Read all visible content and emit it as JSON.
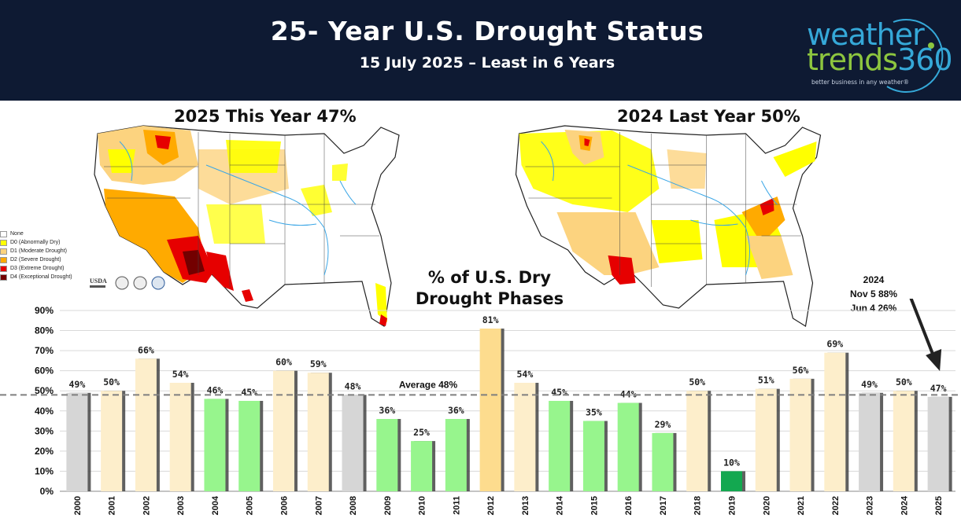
{
  "header": {
    "title": "25- Year U.S. Drought Status",
    "subtitle": "15 July 2025 – Least in 6 Years"
  },
  "logo": {
    "word1": "weather",
    "word2": "trends",
    "word3": "360",
    "tagline": "better business in any weather®",
    "icon": "weathertrends360-logo"
  },
  "maps": [
    {
      "title": "2025 This Year  47%",
      "icon": "us-drought-map-2025"
    },
    {
      "title": "2024 Last Year  50%",
      "icon": "us-drought-map-2024"
    }
  ],
  "legend": {
    "items": [
      {
        "label": "None",
        "color": "#ffffff"
      },
      {
        "label": "D0 (Abnormally Dry)",
        "color": "#ffff00"
      },
      {
        "label": "D1 (Moderate Drought)",
        "color": "#fcd37f"
      },
      {
        "label": "D2 (Severe Drought)",
        "color": "#ffaa00"
      },
      {
        "label": "D3 (Extreme Drought)",
        "color": "#e60000"
      },
      {
        "label": "D4 (Exceptional Drought)",
        "color": "#730000"
      }
    ],
    "agency_logo_text": "USDA"
  },
  "colors": {
    "header_bg": "#0e1a33",
    "gray": "#d6d6d6",
    "light_yellow": "#fdeecb",
    "orange_yellow": "#fddc8e",
    "light_green": "#97f58d",
    "dark_green": "#13a850",
    "average_line": "#7f7f7f",
    "grid": "#d9d9d9"
  },
  "chart_data": {
    "type": "bar",
    "title": "% of U.S. Dry Drought Phases",
    "title_lines": [
      "% of U.S. Dry",
      "Drought Phases"
    ],
    "xlabel": "",
    "ylabel": "",
    "ylim": [
      0,
      90
    ],
    "ytick_labels": [
      "0%",
      "10%",
      "20%",
      "30%",
      "40%",
      "50%",
      "60%",
      "70%",
      "80%",
      "90%"
    ],
    "grid": true,
    "categories": [
      "2000",
      "2001",
      "2002",
      "2003",
      "2004",
      "2005",
      "2006",
      "2007",
      "2008",
      "2009",
      "2010",
      "2011",
      "2012",
      "2013",
      "2014",
      "2015",
      "2016",
      "2017",
      "2018",
      "2019",
      "2020",
      "2021",
      "2022",
      "2023",
      "2024",
      "2025"
    ],
    "values": [
      49,
      50,
      66,
      54,
      46,
      45,
      60,
      59,
      48,
      36,
      25,
      36,
      81,
      54,
      45,
      35,
      44,
      29,
      50,
      10,
      51,
      56,
      69,
      49,
      50,
      47
    ],
    "value_labels": [
      "49%",
      "50%",
      "66%",
      "54%",
      "46%",
      "45%",
      "60%",
      "59%",
      "48%",
      "36%",
      "25%",
      "36%",
      "81%",
      "54%",
      "45%",
      "35%",
      "44%",
      "29%",
      "50%",
      "10%",
      "51%",
      "56%",
      "69%",
      "49%",
      "50%",
      "47%"
    ],
    "bar_colors": [
      "gray",
      "light_yellow",
      "light_yellow",
      "light_yellow",
      "light_green",
      "light_green",
      "light_yellow",
      "light_yellow",
      "gray",
      "light_green",
      "light_green",
      "light_green",
      "orange_yellow",
      "light_yellow",
      "light_green",
      "light_green",
      "light_green",
      "light_green",
      "light_yellow",
      "dark_green",
      "light_yellow",
      "light_yellow",
      "light_yellow",
      "gray",
      "light_yellow",
      "gray"
    ],
    "average": {
      "value": 48,
      "label": "Average 48%"
    },
    "annotation": {
      "lines": [
        "2024",
        "Nov 5 88%",
        "Jun 4 26%"
      ]
    }
  }
}
